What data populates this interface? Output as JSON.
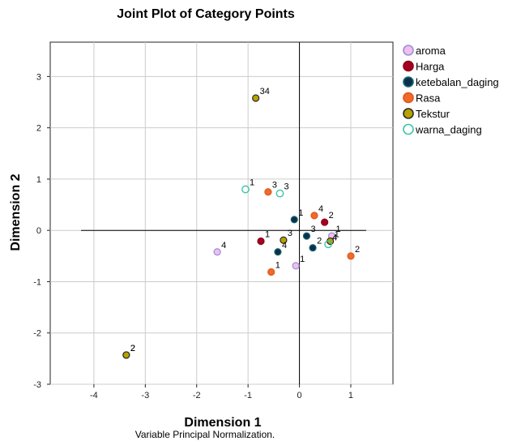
{
  "chart_data": {
    "type": "scatter",
    "title": "Joint Plot of Category Points",
    "xlabel": "Dimension 1",
    "ylabel": "Dimension 2",
    "footnote": "Variable Principal Normalization.",
    "xlim": [
      -4.85,
      1.82
    ],
    "ylim": [
      -3.0,
      3.67
    ],
    "xticks": [
      -4,
      -3,
      -2,
      -1,
      0,
      1
    ],
    "yticks": [
      -3,
      -2,
      -1,
      0,
      1,
      2,
      3
    ],
    "grid": true,
    "legend_position": "right",
    "series": [
      {
        "name": "aroma",
        "marker": "filled-circle",
        "fill": "#f0bff0",
        "stroke": "#9a8fd6",
        "points": [
          {
            "x": -1.6,
            "y": -0.42,
            "label": "4"
          },
          {
            "x": -0.07,
            "y": -0.69,
            "label": "1"
          },
          {
            "x": 0.63,
            "y": -0.11,
            "label": "1"
          }
        ]
      },
      {
        "name": "Harga",
        "marker": "filled-circle",
        "fill": "#a50021",
        "stroke": "#8a001a",
        "points": [
          {
            "x": -0.75,
            "y": -0.21,
            "label": "1"
          },
          {
            "x": 0.49,
            "y": 0.16,
            "label": "2"
          }
        ]
      },
      {
        "name": "ketebalan_daging",
        "marker": "filled-circle",
        "fill": "#0a3050",
        "stroke": "#1a6a6a",
        "points": [
          {
            "x": -0.1,
            "y": 0.21,
            "label": "1"
          },
          {
            "x": 0.14,
            "y": -0.11,
            "label": "3"
          },
          {
            "x": 0.26,
            "y": -0.34,
            "label": "2"
          },
          {
            "x": -0.42,
            "y": -0.42,
            "label": "4"
          },
          {
            "x": -3.37,
            "y": -2.43,
            "label": "2"
          }
        ]
      },
      {
        "name": "Rasa",
        "marker": "filled-circle",
        "fill": "#f06a2a",
        "stroke": "#e0561a",
        "points": [
          {
            "x": -0.61,
            "y": 0.75,
            "label": "3"
          },
          {
            "x": 0.29,
            "y": 0.29,
            "label": "4"
          },
          {
            "x": 1.0,
            "y": -0.5,
            "label": "2"
          },
          {
            "x": -0.55,
            "y": -0.81,
            "label": "1"
          }
        ]
      },
      {
        "name": "Tekstur",
        "marker": "filled-circle",
        "fill": "#b8a100",
        "stroke": "#2a2a2a",
        "points": [
          {
            "x": -0.85,
            "y": 2.58,
            "label": "34"
          },
          {
            "x": -0.31,
            "y": -0.19,
            "label": "3"
          },
          {
            "x": 0.6,
            "y": -0.21,
            "label": "1"
          },
          {
            "x": -3.37,
            "y": -2.43,
            "label": "2"
          }
        ]
      },
      {
        "name": "warna_daging",
        "marker": "open-circle",
        "fill": "#ffffff",
        "stroke": "#3cc4a8",
        "points": [
          {
            "x": -1.05,
            "y": 0.8,
            "label": "1"
          },
          {
            "x": -0.38,
            "y": 0.72,
            "label": "3"
          },
          {
            "x": 0.56,
            "y": -0.27,
            "label": "4"
          }
        ]
      }
    ]
  }
}
